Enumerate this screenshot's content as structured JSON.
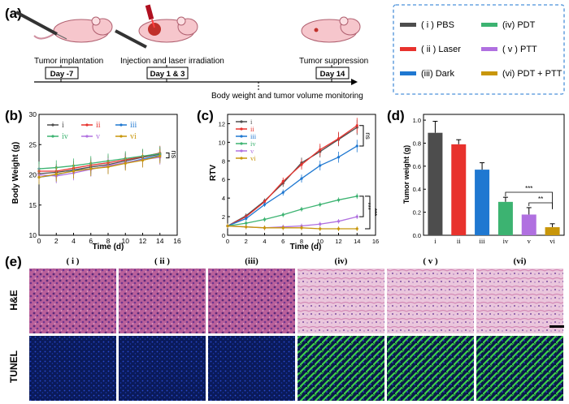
{
  "panels": {
    "a": "(a)",
    "b": "(b)",
    "c": "(c)",
    "d": "(d)",
    "e": "(e)"
  },
  "timeline": {
    "labels": [
      "Tumor implantation",
      "Injection and laser irradiation",
      "Tumor suppression"
    ],
    "days": [
      "Day -7",
      "Day 1 & 3",
      "Day 14"
    ],
    "monitor": "Body weight and tumor volume monitoring"
  },
  "legend_box": [
    {
      "label": "( i ) PBS",
      "color": "#4d4d4d"
    },
    {
      "label": "(iv) PDT",
      "color": "#3cb371"
    },
    {
      "label": "( ii ) Laser",
      "color": "#e8322d"
    },
    {
      "label": "( v ) PTT",
      "color": "#b070e0"
    },
    {
      "label": "(iii) Dark",
      "color": "#1f78d1"
    },
    {
      "label": "(vi) PDT + PTT",
      "color": "#c8960a"
    }
  ],
  "colors": {
    "i": "#4d4d4d",
    "ii": "#e8322d",
    "iii": "#1f78d1",
    "iv": "#3cb371",
    "v": "#b070e0",
    "vi": "#c8960a",
    "frame": "#4a90d9"
  },
  "chart_data": [
    {
      "id": "b",
      "type": "line",
      "xlabel": "Time (d)",
      "ylabel": "Body Weight (g)",
      "x": [
        0,
        2,
        4,
        6,
        8,
        10,
        12,
        14
      ],
      "xlim": [
        0,
        16
      ],
      "ylim": [
        10,
        30
      ],
      "xticks": [
        "0",
        "2",
        "4",
        "6",
        "8",
        "10",
        "12",
        "14",
        "16"
      ],
      "yticks": [
        "10",
        "15",
        "20",
        "25",
        "30"
      ],
      "legend": [
        "i",
        "ii",
        "iii",
        "iv",
        "v",
        "vi"
      ],
      "annotation": "ns",
      "series": [
        {
          "name": "i",
          "values": [
            20.2,
            20.4,
            20.8,
            21.3,
            21.7,
            22.3,
            22.9,
            23.4
          ]
        },
        {
          "name": "ii",
          "values": [
            20.6,
            20.6,
            21.1,
            21.6,
            22.0,
            22.5,
            23.0,
            23.6
          ]
        },
        {
          "name": "iii",
          "values": [
            19.6,
            20.0,
            20.7,
            21.0,
            21.4,
            22.0,
            22.6,
            23.2
          ]
        },
        {
          "name": "iv",
          "values": [
            21.0,
            21.2,
            21.5,
            21.9,
            22.3,
            22.7,
            23.1,
            23.5
          ]
        },
        {
          "name": "v",
          "values": [
            20.0,
            19.8,
            20.3,
            20.9,
            21.5,
            22.0,
            22.5,
            22.9
          ]
        },
        {
          "name": "vi",
          "values": [
            19.6,
            20.1,
            20.6,
            21.0,
            21.3,
            21.9,
            22.4,
            23.1
          ]
        }
      ]
    },
    {
      "id": "c",
      "type": "line",
      "xlabel": "Time (d)",
      "ylabel": "RTV",
      "x": [
        0,
        2,
        4,
        6,
        8,
        10,
        12,
        14
      ],
      "xlim": [
        0,
        16
      ],
      "ylim": [
        0,
        13
      ],
      "xticks": [
        "0",
        "2",
        "4",
        "6",
        "8",
        "10",
        "12",
        "14",
        "16"
      ],
      "yticks": [
        "0",
        "2",
        "4",
        "6",
        "8",
        "10",
        "12"
      ],
      "legend": [
        "i",
        "ii",
        "iii",
        "iv",
        "v",
        "vi"
      ],
      "annotations": [
        "ns",
        "***",
        "***"
      ],
      "series": [
        {
          "name": "i",
          "values": [
            1.0,
            2.1,
            3.7,
            5.6,
            7.8,
            9.0,
            10.3,
            11.6
          ]
        },
        {
          "name": "ii",
          "values": [
            1.0,
            2.0,
            3.6,
            5.8,
            7.6,
            9.2,
            10.4,
            11.8
          ]
        },
        {
          "name": "iii",
          "values": [
            1.0,
            1.8,
            3.3,
            4.6,
            6.1,
            7.5,
            8.4,
            9.6
          ]
        },
        {
          "name": "iv",
          "values": [
            1.0,
            1.3,
            1.7,
            2.2,
            2.8,
            3.3,
            3.8,
            4.2
          ]
        },
        {
          "name": "v",
          "values": [
            1.0,
            0.9,
            0.8,
            0.9,
            1.0,
            1.2,
            1.5,
            2.0
          ]
        },
        {
          "name": "vi",
          "values": [
            1.0,
            0.9,
            0.8,
            0.8,
            0.8,
            0.7,
            0.7,
            0.7
          ]
        }
      ]
    },
    {
      "id": "d",
      "type": "bar",
      "ylabel": "Tumor weight (g)",
      "categories": [
        "i",
        "ii",
        "iii",
        "iv",
        "v",
        "vi"
      ],
      "values": [
        0.89,
        0.79,
        0.57,
        0.29,
        0.18,
        0.07
      ],
      "errors": [
        0.1,
        0.04,
        0.06,
        0.04,
        0.06,
        0.03
      ],
      "ylim": [
        0,
        1.05
      ],
      "yticks": [
        "0.0",
        "0.2",
        "0.4",
        "0.6",
        "0.8",
        "1.0"
      ],
      "annotations": [
        "***",
        "**"
      ]
    }
  ],
  "histology": {
    "columns": [
      "( i )",
      "( ii )",
      "(iii)",
      "(iv)",
      "( v )",
      "(vi)"
    ],
    "rows": [
      "H&E",
      "TUNEL"
    ]
  }
}
